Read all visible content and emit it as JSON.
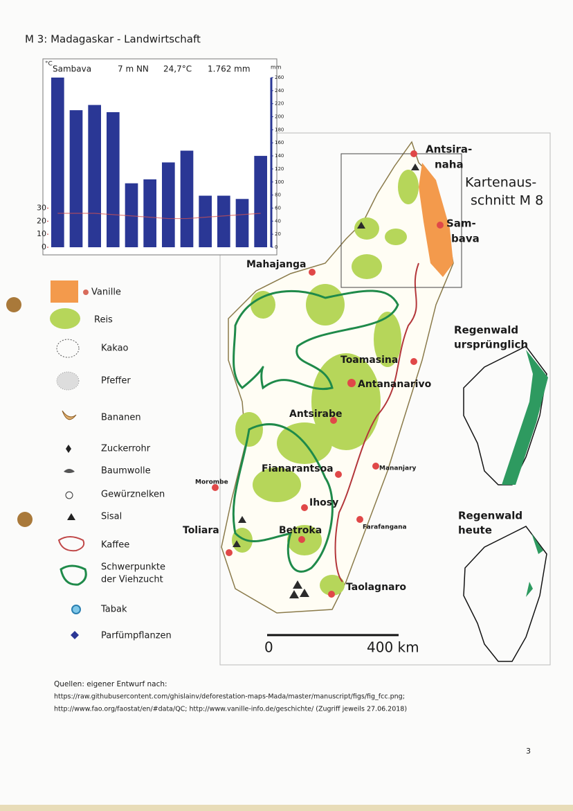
{
  "header": {
    "title": "M 3: Madagaskar - Landwirtschaft"
  },
  "chart_data": {
    "type": "bar",
    "title": "Sambava",
    "elevation": "7 m NN",
    "mean_temperature": "24,7°C",
    "annual_precipitation": "1.762 mm",
    "y_unit": "°C",
    "y2_unit": "mm",
    "categories": [
      null,
      null,
      null,
      null,
      null,
      null,
      null,
      null,
      null,
      null,
      null,
      null
    ],
    "ylim": [
      0,
      130
    ],
    "yticks": [
      0,
      10,
      20,
      30
    ],
    "y2lim": [
      0,
      260
    ],
    "y2ticks": [
      0,
      20,
      40,
      60,
      80,
      100,
      120,
      140,
      160,
      180,
      200,
      220,
      240,
      260
    ],
    "series": [
      {
        "type": "bar",
        "axis": "y2",
        "color": "#2a3795",
        "values": [
          260,
          210,
          218,
          207,
          98,
          104,
          130,
          148,
          79,
          79,
          74,
          140
        ]
      },
      {
        "type": "line",
        "axis": "y",
        "color": "#d9534f",
        "values": [
          26,
          26,
          26,
          25,
          24,
          23,
          22,
          22,
          23,
          24,
          25,
          26
        ]
      }
    ]
  },
  "legend": [
    [
      "Vanille"
    ],
    [
      "Reis"
    ],
    [
      "Kakao"
    ],
    [
      "Pfeffer"
    ],
    [
      "Bananen"
    ],
    [
      "Zuckerrohr"
    ],
    [
      "Baumwolle"
    ],
    [
      "Gewürznelken"
    ],
    [
      "Sisal"
    ],
    [
      "Kaffee"
    ],
    [
      "Schwerpunkte",
      "der Viehzucht"
    ],
    [
      "Tabak"
    ],
    [
      "Parfümpflanzen"
    ]
  ],
  "map": {
    "places": [
      [
        "Antsira-",
        "naha"
      ],
      [
        "Sam-",
        "bava"
      ],
      [
        "Mahajanga"
      ],
      [
        "Toamasina"
      ],
      [
        "Antananarivo"
      ],
      [
        "Antsirabe"
      ],
      [
        "Fianarantsoa"
      ],
      [
        "Morombe"
      ],
      [
        "Ihosy"
      ],
      [
        "Mananjary"
      ],
      [
        "Toliara"
      ],
      [
        "Betroka"
      ],
      [
        "Farafangana"
      ],
      [
        "Taolagnaro"
      ]
    ],
    "inset_label": [
      "Kartenaus-",
      "schnitt M 8"
    ],
    "scale": [
      "0",
      "400 km"
    ]
  },
  "insets": [
    [
      "Regenwald",
      "ursprünglich"
    ],
    [
      "Regenwald",
      "heute"
    ]
  ],
  "sources": [
    "Quellen: eigener Entwurf nach:",
    "https://raw.githubusercontent.com/ghislainv/deforestation-maps-Mada/master/manuscript/figs/fig_fcc.png;",
    "http://www.fao.org/faostat/en/#data/QC; http://www.vanille-info.de/geschichte/ (Zugriff jeweils 27.06.2018)"
  ],
  "page_number": "3"
}
